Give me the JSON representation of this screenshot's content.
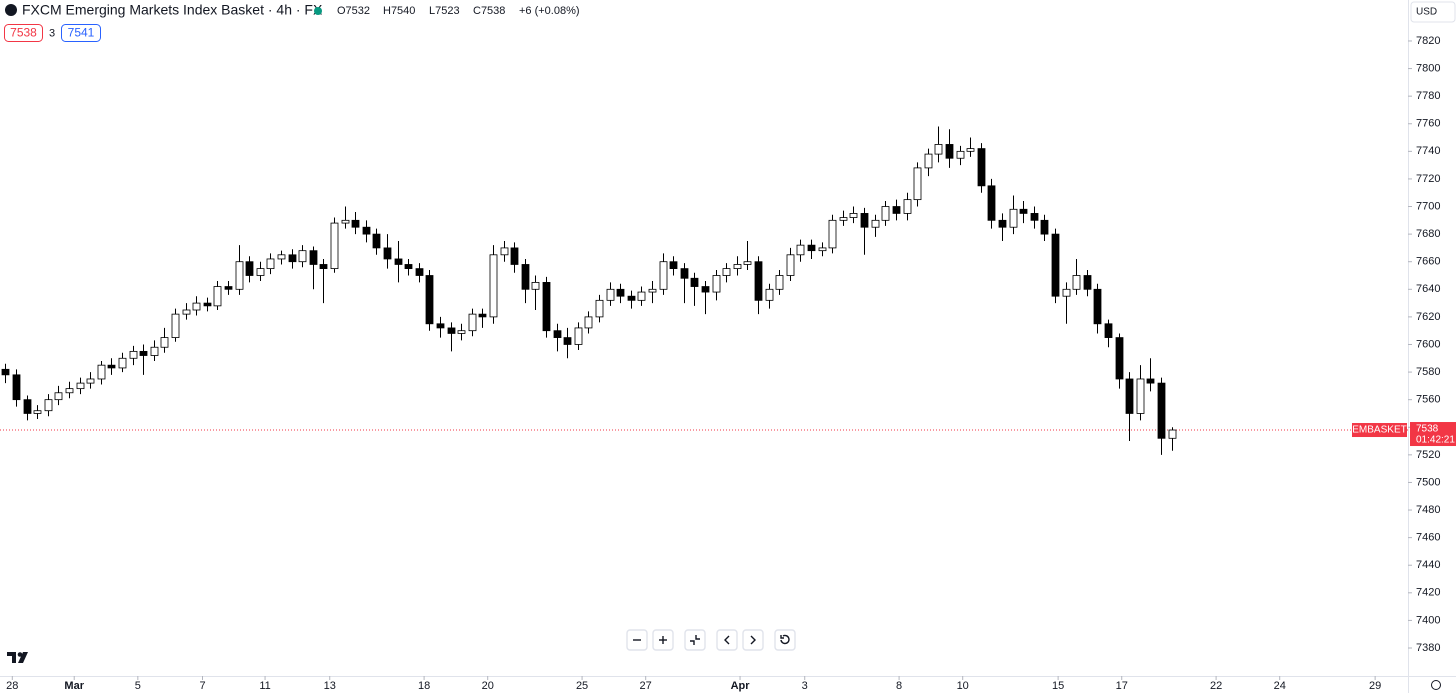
{
  "chart_data": {
    "type": "candlestick",
    "title": "FXCM Emerging Markets Index Basket · 4h · FX",
    "ohlc_legend": [
      "O7532",
      "H7540",
      "L7523",
      "C7538",
      "+6 (+0.08%)"
    ],
    "sell_price": "7538",
    "spread": "3",
    "buy_price": "7541",
    "currency": "USD",
    "symbol_label": "EMBASKET",
    "last_price": 7538,
    "countdown": "01:42:21",
    "up_color": "#ffffff",
    "down_color": "#000000",
    "last_price_color": "#f23645",
    "xlim": [
      -0.5,
      132.3
    ],
    "ylim": [
      7359.7,
      7849.7
    ],
    "yticks": [
      7380,
      7400,
      7420,
      7440,
      7460,
      7480,
      7500,
      7520,
      7540,
      7560,
      7580,
      7600,
      7620,
      7640,
      7660,
      7680,
      7700,
      7720,
      7740,
      7760,
      7780,
      7800,
      7820
    ],
    "xticks": [
      {
        "value": 0.66,
        "label": "28"
      },
      {
        "value": 6.5,
        "label": "Mar"
      },
      {
        "value": 12.5,
        "label": "5"
      },
      {
        "value": 18.6,
        "label": "7"
      },
      {
        "value": 24.5,
        "label": "11"
      },
      {
        "value": 30.6,
        "label": "13"
      },
      {
        "value": 39.5,
        "label": "18"
      },
      {
        "value": 45.5,
        "label": "20"
      },
      {
        "value": 54.4,
        "label": "25"
      },
      {
        "value": 60.4,
        "label": "27"
      },
      {
        "value": 69.3,
        "label": "Apr"
      },
      {
        "value": 75.4,
        "label": "3"
      },
      {
        "value": 84.3,
        "label": "8"
      },
      {
        "value": 90.3,
        "label": "10"
      },
      {
        "value": 99.3,
        "label": "15"
      },
      {
        "value": 105.3,
        "label": "17"
      },
      {
        "value": 114.2,
        "label": "22"
      },
      {
        "value": 120.2,
        "label": "24"
      },
      {
        "value": 129.2,
        "label": "29"
      }
    ],
    "open": [
      7582,
      7578,
      7560,
      7550,
      7552,
      7560,
      7565,
      7568,
      7572,
      7575,
      7585,
      7583,
      7590,
      7595,
      7592,
      7598,
      7605,
      7622,
      7625,
      7630,
      7628,
      7642,
      7640,
      7660,
      7650,
      7655,
      7662,
      7665,
      7660,
      7668,
      7658,
      7655,
      7688,
      7690,
      7685,
      7680,
      7670,
      7662,
      7658,
      7655,
      7650,
      7615,
      7612,
      7608,
      7610,
      7622,
      7620,
      7665,
      7670,
      7658,
      7640,
      7645,
      7610,
      7605,
      7600,
      7612,
      7620,
      7632,
      7640,
      7635,
      7632,
      7638,
      7640,
      7660,
      7655,
      7648,
      7642,
      7638,
      7650,
      7655,
      7658,
      7660,
      7632,
      7640,
      7650,
      7665,
      7672,
      7668,
      7670,
      7690,
      7692,
      7695,
      7685,
      7690,
      7700,
      7695,
      7705,
      7728,
      7738,
      7745,
      7735,
      7740,
      7742,
      7715,
      7690,
      7685,
      7698,
      7695,
      7690,
      7680,
      7635,
      7640,
      7650,
      7640,
      7615,
      7605,
      7575,
      7550,
      7575,
      7572,
      7532
    ],
    "high": [
      7586,
      7582,
      7563,
      7556,
      7564,
      7570,
      7573,
      7576,
      7580,
      7588,
      7590,
      7594,
      7599,
      7600,
      7603,
      7612,
      7626,
      7630,
      7635,
      7634,
      7646,
      7646,
      7672,
      7664,
      7660,
      7666,
      7668,
      7669,
      7672,
      7671,
      7662,
      7692,
      7700,
      7696,
      7690,
      7684,
      7680,
      7675,
      7662,
      7659,
      7654,
      7620,
      7616,
      7615,
      7626,
      7626,
      7672,
      7675,
      7674,
      7662,
      7650,
      7649,
      7615,
      7612,
      7616,
      7624,
      7636,
      7645,
      7644,
      7639,
      7642,
      7646,
      7666,
      7664,
      7659,
      7652,
      7646,
      7654,
      7659,
      7664,
      7675,
      7664,
      7644,
      7654,
      7670,
      7676,
      7676,
      7674,
      7694,
      7697,
      7700,
      7699,
      7694,
      7704,
      7705,
      7710,
      7732,
      7742,
      7758,
      7756,
      7744,
      7750,
      7746,
      7720,
      7695,
      7708,
      7704,
      7700,
      7694,
      7684,
      7645,
      7662,
      7654,
      7644,
      7618,
      7608,
      7580,
      7585,
      7590,
      7576,
      7540
    ],
    "low": [
      7572,
      7555,
      7545,
      7546,
      7548,
      7556,
      7561,
      7564,
      7568,
      7571,
      7578,
      7580,
      7585,
      7578,
      7588,
      7594,
      7602,
      7618,
      7621,
      7624,
      7625,
      7636,
      7636,
      7645,
      7646,
      7651,
      7658,
      7655,
      7656,
      7640,
      7630,
      7652,
      7684,
      7680,
      7674,
      7665,
      7655,
      7645,
      7650,
      7645,
      7610,
      7605,
      7595,
      7603,
      7606,
      7612,
      7615,
      7660,
      7652,
      7630,
      7625,
      7605,
      7595,
      7590,
      7596,
      7608,
      7616,
      7628,
      7630,
      7626,
      7628,
      7630,
      7636,
      7650,
      7630,
      7628,
      7622,
      7632,
      7645,
      7650,
      7654,
      7622,
      7626,
      7636,
      7646,
      7660,
      7662,
      7664,
      7666,
      7686,
      7688,
      7665,
      7678,
      7686,
      7690,
      7690,
      7700,
      7722,
      7732,
      7728,
      7730,
      7736,
      7710,
      7684,
      7675,
      7680,
      7688,
      7684,
      7675,
      7630,
      7615,
      7636,
      7635,
      7608,
      7598,
      7568,
      7530,
      7545,
      7566,
      7520,
      7523
    ],
    "close": [
      7578,
      7560,
      7550,
      7552,
      7560,
      7565,
      7568,
      7572,
      7575,
      7585,
      7583,
      7590,
      7595,
      7592,
      7598,
      7605,
      7622,
      7625,
      7630,
      7628,
      7642,
      7640,
      7660,
      7650,
      7655,
      7662,
      7665,
      7660,
      7668,
      7658,
      7655,
      7688,
      7690,
      7685,
      7680,
      7670,
      7662,
      7658,
      7655,
      7650,
      7615,
      7612,
      7608,
      7610,
      7622,
      7620,
      7665,
      7670,
      7658,
      7640,
      7645,
      7610,
      7605,
      7600,
      7612,
      7620,
      7632,
      7640,
      7635,
      7632,
      7638,
      7640,
      7660,
      7655,
      7648,
      7642,
      7638,
      7650,
      7655,
      7658,
      7660,
      7632,
      7640,
      7650,
      7665,
      7672,
      7668,
      7670,
      7690,
      7692,
      7695,
      7685,
      7690,
      7700,
      7695,
      7705,
      7728,
      7738,
      7745,
      7735,
      7740,
      7742,
      7715,
      7690,
      7685,
      7698,
      7695,
      7690,
      7680,
      7635,
      7640,
      7650,
      7640,
      7615,
      7605,
      7575,
      7550,
      7575,
      7572,
      7532,
      7538
    ]
  }
}
